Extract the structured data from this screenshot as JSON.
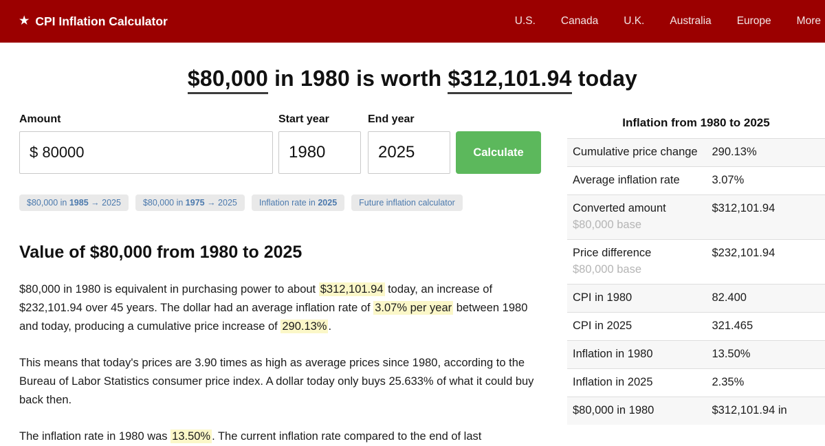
{
  "colors": {
    "header_bg": "#9b0000",
    "calculate_button_green": "#5cb85c",
    "highlight_yellow": "#fbf7c8",
    "chip_link_blue": "#4b79ad"
  },
  "header": {
    "star": "★",
    "brand": "CPI Inflation Calculator",
    "nav": [
      "U.S.",
      "Canada",
      "U.K.",
      "Australia",
      "Europe",
      "More"
    ]
  },
  "title": {
    "amount": "$80,000",
    "middle": " in 1980 is worth ",
    "result": "$312,101.94",
    "suffix": " today"
  },
  "form": {
    "amount_label": "Amount",
    "amount_value": "$ 80000",
    "start_label": "Start year",
    "start_value": "1980",
    "end_label": "End year",
    "end_value": "2025",
    "calculate_label": "Calculate"
  },
  "chips": [
    {
      "pre": "$80,000 in ",
      "bold": "1985",
      "post": " → 2025"
    },
    {
      "pre": "$80,000 in ",
      "bold": "1975",
      "post": " → 2025"
    },
    {
      "pre": "Inflation rate in ",
      "bold": "2025",
      "post": ""
    },
    {
      "pre": "",
      "bold": "",
      "post": "Future inflation calculator"
    }
  ],
  "article": {
    "heading": "Value of $80,000 from 1980 to 2025",
    "p1": {
      "s1": "$80,000 in 1980 is equivalent in purchasing power to about ",
      "h1": "$312,101.94",
      "s2": " today, an increase of $232,101.94 over 45 years. The dollar had an average inflation rate of ",
      "h2": "3.07% per year",
      "s3": " between 1980 and today, producing a cumulative price increase of ",
      "h3": "290.13%",
      "s4": "."
    },
    "p2": "This means that today's prices are 3.90 times as high as average prices since 1980, according to the Bureau of Labor Statistics consumer price index. A dollar today only buys 25.633% of what it could buy back then.",
    "p3": {
      "s1": "The inflation rate in 1980 was ",
      "h1": "13.50%",
      "s2": ". The current inflation rate compared to the end of last"
    }
  },
  "sidebar": {
    "title": "Inflation from 1980 to 2025",
    "rows": [
      {
        "label": "Cumulative price change",
        "sub": "",
        "value": "290.13%"
      },
      {
        "label": "Average inflation rate",
        "sub": "",
        "value": "3.07%"
      },
      {
        "label": "Converted amount",
        "sub": "$80,000 base",
        "value": "$312,101.94"
      },
      {
        "label": "Price difference",
        "sub": "$80,000 base",
        "value": "$232,101.94"
      },
      {
        "label": "CPI in 1980",
        "sub": "",
        "value": "82.400"
      },
      {
        "label": "CPI in 2025",
        "sub": "",
        "value": "321.465"
      },
      {
        "label": "Inflation in 1980",
        "sub": "",
        "value": "13.50%"
      },
      {
        "label": "Inflation in 2025",
        "sub": "",
        "value": "2.35%"
      },
      {
        "label": "$80,000 in 1980",
        "sub": "",
        "value": "$312,101.94 in"
      }
    ]
  }
}
